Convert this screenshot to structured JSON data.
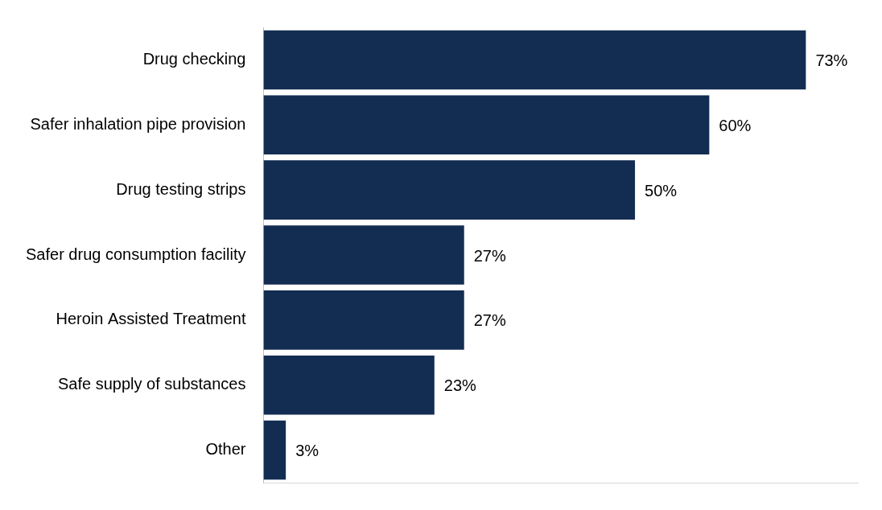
{
  "chart_data": {
    "type": "bar",
    "orientation": "horizontal",
    "categories": [
      "Drug checking",
      "Safer inhalation pipe provision",
      "Drug testing strips",
      "Safer drug consumption facility",
      "Heroin Assisted Treatment",
      "Safe supply of substances",
      "Other"
    ],
    "values": [
      73,
      60,
      50,
      27,
      27,
      23,
      3
    ],
    "value_labels": [
      "73%",
      "60%",
      "50%",
      "27%",
      "27%",
      "23%",
      "3%"
    ],
    "color": "#132d52",
    "xlim": [
      0,
      80
    ],
    "grid": false,
    "data_labels": true,
    "tick_labels": "y"
  }
}
